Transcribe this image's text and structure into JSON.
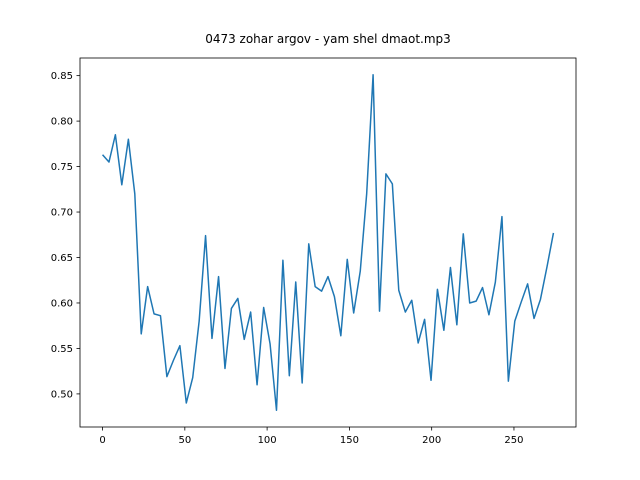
{
  "chart_data": {
    "type": "line",
    "title": "0473 zohar argov - yam shel dmaot.mp3",
    "x": [
      0,
      3.9,
      7.8,
      11.7,
      15.7,
      19.6,
      23.5,
      27.4,
      31.3,
      35.2,
      39.1,
      43.1,
      47.0,
      50.9,
      54.8,
      58.7,
      62.6,
      66.5,
      70.5,
      74.4,
      78.3,
      82.2,
      86.1,
      90.0,
      93.9,
      97.9,
      101.8,
      105.7,
      109.6,
      113.5,
      117.4,
      121.3,
      125.3,
      129.2,
      133.1,
      137.0,
      140.9,
      144.8,
      148.7,
      152.6,
      156.6,
      160.5,
      164.4,
      168.3,
      172.2,
      176.1,
      180.0,
      184.0,
      187.9,
      191.8,
      195.7,
      199.6,
      203.5,
      207.4,
      211.4,
      215.3,
      219.2,
      223.1,
      227.0,
      230.9,
      234.8,
      238.7,
      242.7,
      246.6,
      250.5,
      254.4,
      258.3,
      262.2,
      266.1,
      270.1,
      274.0
    ],
    "series": [
      {
        "color": "#1f77b4",
        "values": [
          0.763,
          0.755,
          0.785,
          0.73,
          0.78,
          0.72,
          0.566,
          0.618,
          0.588,
          0.586,
          0.519,
          0.537,
          0.553,
          0.49,
          0.518,
          0.58,
          0.674,
          0.561,
          0.629,
          0.528,
          0.594,
          0.605,
          0.56,
          0.59,
          0.51,
          0.595,
          0.555,
          0.482,
          0.647,
          0.52,
          0.623,
          0.512,
          0.665,
          0.618,
          0.613,
          0.629,
          0.607,
          0.564,
          0.648,
          0.589,
          0.635,
          0.72,
          0.851,
          0.591,
          0.742,
          0.731,
          0.614,
          0.59,
          0.603,
          0.556,
          0.582,
          0.515,
          0.615,
          0.57,
          0.639,
          0.576,
          0.676,
          0.6,
          0.602,
          0.617,
          0.587,
          0.623,
          0.695,
          0.514,
          0.58,
          0.601,
          0.621,
          0.583,
          0.604,
          0.64,
          0.677
        ]
      }
    ],
    "xlim": [
      -13.7,
      287.7
    ],
    "xticks": [
      0,
      50,
      100,
      150,
      200,
      250
    ],
    "ylim": [
      0.4636,
      0.8694
    ],
    "yticks": [
      {
        "value": 0.5,
        "label": "0.50"
      },
      0.55,
      {
        "value": 0.6,
        "label": "0.60"
      },
      0.65,
      {
        "value": 0.7,
        "label": "0.70"
      },
      0.75,
      {
        "value": 0.8,
        "label": "0.80"
      },
      0.85
    ],
    "grid": false
  }
}
